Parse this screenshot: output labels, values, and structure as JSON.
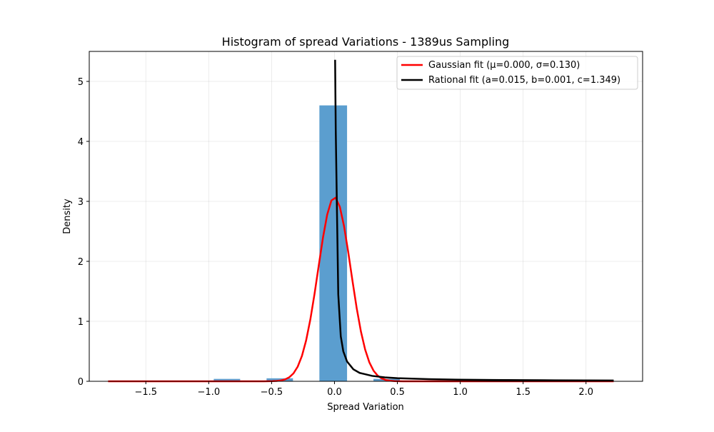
{
  "chart_data": {
    "type": "bar",
    "title": "Histogram of spread Variations - 1389us Sampling",
    "xlabel": "Spread Variation",
    "ylabel": "Density",
    "xlim": [
      -1.95,
      2.45
    ],
    "ylim": [
      0,
      5.5
    ],
    "xticks": [
      -1.5,
      -1.0,
      -0.5,
      0.0,
      0.5,
      1.0,
      1.5,
      2.0
    ],
    "xtick_labels": [
      "−1.5",
      "−1.0",
      "−0.5",
      "0.0",
      "0.5",
      "1.0",
      "1.5",
      "2.0"
    ],
    "yticks": [
      0,
      1,
      2,
      3,
      4,
      5
    ],
    "ytick_labels": [
      "0",
      "1",
      "2",
      "3",
      "4",
      "5"
    ],
    "grid": true,
    "legend_position": "top-right",
    "histogram": {
      "color": "#5b9ecf",
      "bins": [
        {
          "x0": -1.8,
          "x1": -1.59,
          "value": 0.0
        },
        {
          "x0": -1.59,
          "x1": -1.38,
          "value": 0.0
        },
        {
          "x0": -1.38,
          "x1": -1.17,
          "value": 0.0
        },
        {
          "x0": -1.17,
          "x1": -0.96,
          "value": 0.0
        },
        {
          "x0": -0.96,
          "x1": -0.75,
          "value": 0.04
        },
        {
          "x0": -0.75,
          "x1": -0.54,
          "value": 0.0
        },
        {
          "x0": -0.54,
          "x1": -0.33,
          "value": 0.05
        },
        {
          "x0": -0.33,
          "x1": -0.12,
          "value": 0.0
        },
        {
          "x0": -0.12,
          "x1": 0.1,
          "value": 4.6
        },
        {
          "x0": 0.1,
          "x1": 0.31,
          "value": 0.0
        },
        {
          "x0": 0.31,
          "x1": 0.52,
          "value": 0.04
        },
        {
          "x0": 0.52,
          "x1": 0.73,
          "value": 0.0
        },
        {
          "x0": 0.73,
          "x1": 0.94,
          "value": 0.0
        },
        {
          "x0": 0.94,
          "x1": 1.15,
          "value": 0.0
        },
        {
          "x0": 1.15,
          "x1": 1.36,
          "value": 0.0
        },
        {
          "x0": 1.36,
          "x1": 1.57,
          "value": 0.0
        },
        {
          "x0": 1.57,
          "x1": 1.78,
          "value": 0.0
        },
        {
          "x0": 1.78,
          "x1": 1.99,
          "value": 0.0
        },
        {
          "x0": 1.99,
          "x1": 2.2,
          "value": 0.0
        }
      ]
    },
    "series": [
      {
        "name": "Gaussian fit (μ=0.000, σ=0.130)",
        "color": "#ff0000",
        "kind": "gaussian",
        "mu": 0.0,
        "sigma": 0.13,
        "x_range": [
          -1.8,
          2.22
        ]
      },
      {
        "name": "Rational fit (a=0.015, b=0.001, c=1.349)",
        "color": "#000000",
        "kind": "rational",
        "points": [
          [
            0.005,
            5.36
          ],
          [
            0.01,
            4.2
          ],
          [
            0.02,
            2.8
          ],
          [
            0.03,
            1.45
          ],
          [
            0.05,
            0.75
          ],
          [
            0.07,
            0.5
          ],
          [
            0.1,
            0.33
          ],
          [
            0.15,
            0.2
          ],
          [
            0.2,
            0.14
          ],
          [
            0.3,
            0.09
          ],
          [
            0.4,
            0.066
          ],
          [
            0.5,
            0.052
          ],
          [
            0.75,
            0.035
          ],
          [
            1.0,
            0.027
          ],
          [
            1.25,
            0.022
          ],
          [
            1.5,
            0.019
          ],
          [
            1.75,
            0.017
          ],
          [
            2.0,
            0.015
          ],
          [
            2.22,
            0.014
          ]
        ]
      }
    ]
  }
}
